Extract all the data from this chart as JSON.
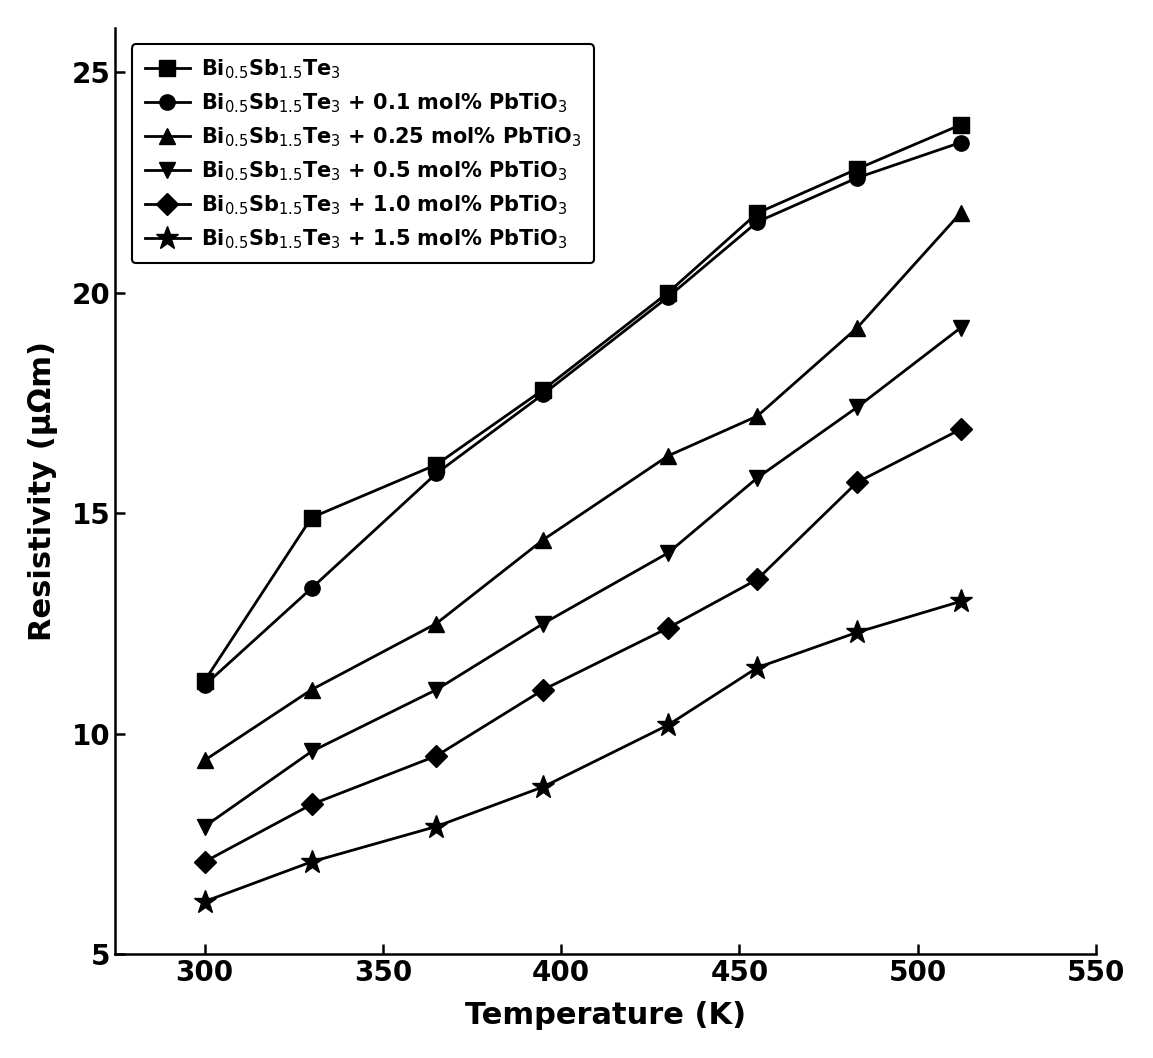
{
  "title": "",
  "xlabel": "Temperature (K)",
  "ylabel": "Resistivity (μΩm)",
  "xlim": [
    275,
    550
  ],
  "ylim": [
    5,
    26
  ],
  "xticks": [
    300,
    350,
    400,
    450,
    500,
    550
  ],
  "yticks": [
    5,
    10,
    15,
    20,
    25
  ],
  "series": [
    {
      "label": "Bi$_{0.5}$Sb$_{1.5}$Te$_{3}$",
      "marker": "s",
      "color": "#000000",
      "x": [
        300,
        330,
        365,
        395,
        430,
        455,
        483,
        512
      ],
      "y": [
        11.2,
        14.9,
        16.1,
        17.8,
        20.0,
        21.8,
        22.8,
        23.8
      ]
    },
    {
      "label": "Bi$_{0.5}$Sb$_{1.5}$Te$_{3}$ + 0.1 mol% PbTiO$_{3}$",
      "marker": "o",
      "color": "#000000",
      "x": [
        300,
        330,
        365,
        395,
        430,
        455,
        483,
        512
      ],
      "y": [
        11.1,
        13.3,
        15.9,
        17.7,
        19.9,
        21.6,
        22.6,
        23.4
      ]
    },
    {
      "label": "Bi$_{0.5}$Sb$_{1.5}$Te$_{3}$ + 0.25 mol% PbTiO$_{3}$",
      "marker": "^",
      "color": "#000000",
      "x": [
        300,
        330,
        365,
        395,
        430,
        455,
        483,
        512
      ],
      "y": [
        9.4,
        11.0,
        12.5,
        14.4,
        16.3,
        17.2,
        19.2,
        21.8
      ]
    },
    {
      "label": "Bi$_{0.5}$Sb$_{1.5}$Te$_{3}$ + 0.5 mol% PbTiO$_{3}$",
      "marker": "v",
      "color": "#000000",
      "x": [
        300,
        330,
        365,
        395,
        430,
        455,
        483,
        512
      ],
      "y": [
        7.9,
        9.6,
        11.0,
        12.5,
        14.1,
        15.8,
        17.4,
        19.2
      ]
    },
    {
      "label": "Bi$_{0.5}$Sb$_{1.5}$Te$_{3}$ + 1.0 mol% PbTiO$_{3}$",
      "marker": "D",
      "color": "#000000",
      "x": [
        300,
        330,
        365,
        395,
        430,
        455,
        483,
        512
      ],
      "y": [
        7.1,
        8.4,
        9.5,
        11.0,
        12.4,
        13.5,
        15.7,
        16.9
      ]
    },
    {
      "label": "Bi$_{0.5}$Sb$_{1.5}$Te$_{3}$ + 1.5 mol% PbTiO$_{3}$",
      "marker": "*",
      "color": "#000000",
      "x": [
        300,
        330,
        365,
        395,
        430,
        455,
        483,
        512
      ],
      "y": [
        6.2,
        7.1,
        7.9,
        8.8,
        10.2,
        11.5,
        12.3,
        13.0
      ]
    }
  ],
  "background_color": "#ffffff",
  "legend_fontsize": 15,
  "axis_label_fontsize": 22,
  "tick_fontsize": 20,
  "linewidth": 2.0,
  "markersize_s": 11,
  "markersize_o": 11,
  "markersize_t": 12,
  "markersize_v": 12,
  "markersize_D": 11,
  "markersize_star": 17
}
